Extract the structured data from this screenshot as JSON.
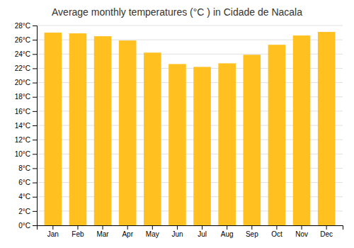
{
  "chart_data": {
    "type": "bar",
    "title": "Average monthly temperatures (°C ) in Cidade de Nacala",
    "categories": [
      "Jan",
      "Feb",
      "Mar",
      "Apr",
      "May",
      "Jun",
      "Jul",
      "Aug",
      "Sep",
      "Oct",
      "Nov",
      "Dec"
    ],
    "values": [
      27.0,
      26.9,
      26.5,
      25.9,
      24.2,
      22.6,
      22.2,
      22.7,
      23.9,
      25.3,
      26.6,
      27.1
    ],
    "color": "#FFC020",
    "ylim": [
      0,
      28
    ],
    "yticks": [
      {
        "value": 0,
        "label": "0°C"
      },
      {
        "value": 2,
        "label": "2°C"
      },
      {
        "value": 4,
        "label": "4°C"
      },
      {
        "value": 6,
        "label": "6°C"
      },
      {
        "value": 8,
        "label": "8°C"
      },
      {
        "value": 10,
        "label": "10°C"
      },
      {
        "value": 12,
        "label": "12°C"
      },
      {
        "value": 14,
        "label": "14°C"
      },
      {
        "value": 16,
        "label": "16°C"
      },
      {
        "value": 18,
        "label": "18°C"
      },
      {
        "value": 20,
        "label": "20°C"
      },
      {
        "value": 22,
        "label": "22°C"
      },
      {
        "value": 24,
        "label": "24°C"
      },
      {
        "value": 26,
        "label": "26°C"
      },
      {
        "value": 28,
        "label": "28°C"
      }
    ],
    "grid": true
  }
}
